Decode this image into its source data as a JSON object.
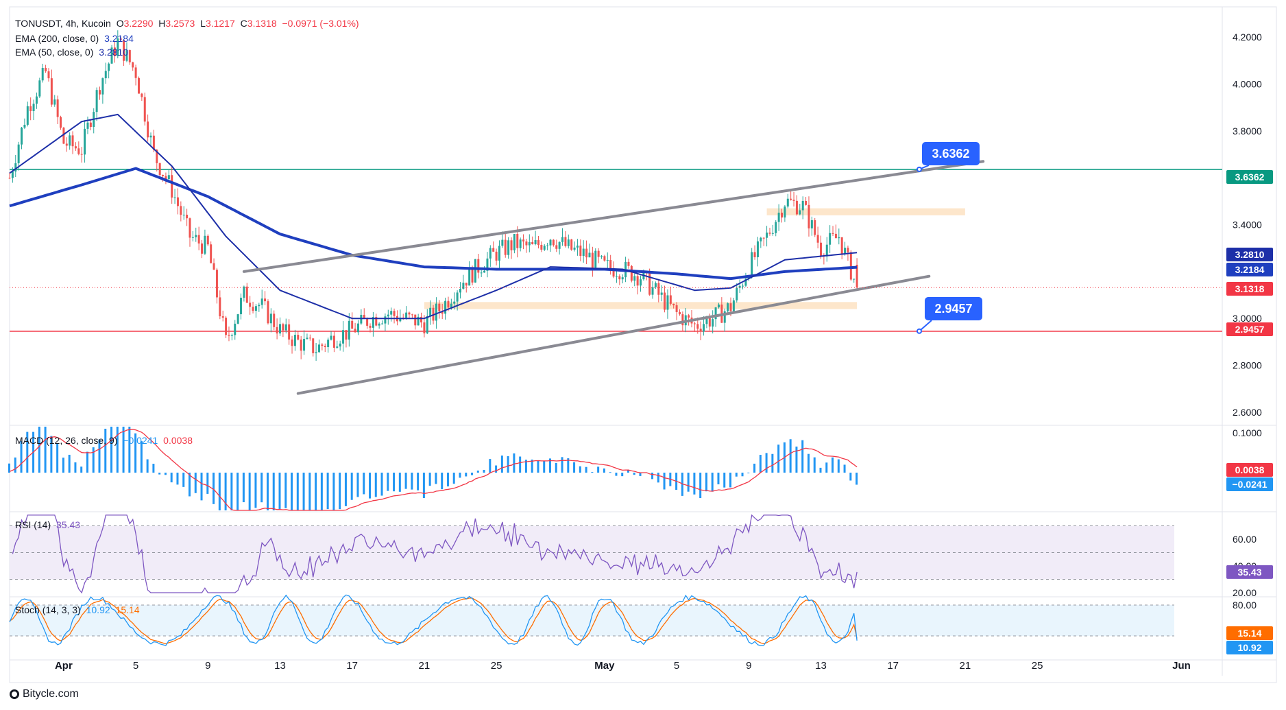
{
  "header": {
    "symbol": "TONUSDT, 4h, Kucoin",
    "open_label": "O",
    "open": "3.2290",
    "high_label": "H",
    "high": "3.2573",
    "low_label": "L",
    "low": "3.1217",
    "close_label": "C",
    "close": "3.1318",
    "change": "−0.0971 (−3.01%)"
  },
  "indicators": {
    "ema200": {
      "label": "EMA (200, close, 0)",
      "value": "3.2184",
      "color": "#1f3fbf"
    },
    "ema50": {
      "label": "EMA (50, close, 0)",
      "value": "3.2810",
      "color": "#1d2fa8"
    },
    "macd": {
      "label": "MACD (12, 26, close, 9)",
      "macd_value": "−0.0241",
      "signal_value": "0.0038"
    },
    "rsi": {
      "label": "RSI (14)",
      "value": "35.43"
    },
    "stoch": {
      "label": "Stoch (14, 3, 3)",
      "k_value": "10.92",
      "d_value": "15.14"
    }
  },
  "callouts": {
    "resistance": "3.6362",
    "support": "2.9457"
  },
  "price_axis": {
    "ticks": [
      "4.2000",
      "4.0000",
      "3.8000",
      "3.6000",
      "3.4000",
      "3.0000",
      "2.8000",
      "2.6000"
    ],
    "tags": {
      "resistance": "3.6362",
      "ema50": "3.2810",
      "ema200": "3.2184",
      "last": "3.1318",
      "support": "2.9457"
    }
  },
  "macd_axis": {
    "ticks": [
      "0.1000"
    ],
    "tags": {
      "signal": "0.0038",
      "macd": "−0.0241"
    }
  },
  "rsi_axis": {
    "ticks": [
      "60.00",
      "40.00",
      "20.00"
    ],
    "tag": "35.43"
  },
  "stoch_axis": {
    "ticks": [
      "80.00"
    ],
    "tags": {
      "d": "15.14",
      "k": "10.92"
    }
  },
  "time_axis": [
    "Apr",
    "5",
    "9",
    "13",
    "17",
    "21",
    "25",
    "May",
    "5",
    "9",
    "13",
    "17",
    "21",
    "25",
    "Jun"
  ],
  "colors": {
    "up": "#26a69a",
    "down": "#ef5350",
    "ema200": "#1f3fbf",
    "ema50": "#1d2fa8",
    "resistance": "#089981",
    "support": "#f23645",
    "channel": "#8a8a93",
    "zone": "#fde2c2",
    "callout": "#2962ff",
    "macd_signal": "#f23645",
    "histogram": "#2196f3",
    "rsi": "#7e57c2",
    "stoch_k": "#2196f3",
    "stoch_d": "#ff6d00"
  },
  "footer": {
    "brand": "Bitycle.com"
  },
  "chart_data": [
    {
      "type": "candlestick",
      "symbol": "TONUSDT",
      "timeframe": "4h",
      "ylim": [
        2.55,
        4.3
      ],
      "x_range": [
        "Mar 29",
        "Jun 2"
      ],
      "ohlc_last": {
        "open": 3.229,
        "high": 3.2573,
        "low": 3.1217,
        "close": 3.1318
      },
      "price_path": [
        {
          "x": "Mar 29",
          "y": 3.6
        },
        {
          "x": "Mar 30",
          "y": 3.9
        },
        {
          "x": "Mar 31",
          "y": 4.05
        },
        {
          "x": "Apr 1",
          "y": 3.75
        },
        {
          "x": "Apr 2",
          "y": 3.72
        },
        {
          "x": "Apr 3",
          "y": 4.0
        },
        {
          "x": "Apr 4",
          "y": 4.18
        },
        {
          "x": "Apr 5",
          "y": 4.05
        },
        {
          "x": "Apr 6",
          "y": 3.7
        },
        {
          "x": "Apr 7",
          "y": 3.55
        },
        {
          "x": "Apr 8",
          "y": 3.35
        },
        {
          "x": "Apr 9",
          "y": 3.3
        },
        {
          "x": "Apr 10",
          "y": 2.9
        },
        {
          "x": "Apr 11",
          "y": 3.1
        },
        {
          "x": "Apr 12",
          "y": 3.05
        },
        {
          "x": "Apr 13",
          "y": 2.95
        },
        {
          "x": "Apr 14",
          "y": 2.9
        },
        {
          "x": "Apr 15",
          "y": 2.87
        },
        {
          "x": "Apr 16",
          "y": 2.92
        },
        {
          "x": "Apr 17",
          "y": 2.95
        },
        {
          "x": "Apr 18",
          "y": 3.0
        },
        {
          "x": "Apr 19",
          "y": 3.02
        },
        {
          "x": "Apr 20",
          "y": 3.0
        },
        {
          "x": "Apr 21",
          "y": 2.98
        },
        {
          "x": "Apr 22",
          "y": 3.05
        },
        {
          "x": "Apr 23",
          "y": 3.15
        },
        {
          "x": "Apr 24",
          "y": 3.22
        },
        {
          "x": "Apr 25",
          "y": 3.28
        },
        {
          "x": "Apr 26",
          "y": 3.32
        },
        {
          "x": "Apr 27",
          "y": 3.3
        },
        {
          "x": "Apr 28",
          "y": 3.35
        },
        {
          "x": "Apr 29",
          "y": 3.3
        },
        {
          "x": "Apr 30",
          "y": 3.27
        },
        {
          "x": "May 1",
          "y": 3.22
        },
        {
          "x": "May 2",
          "y": 3.21
        },
        {
          "x": "May 3",
          "y": 3.18
        },
        {
          "x": "May 4",
          "y": 3.1
        },
        {
          "x": "May 5",
          "y": 3.02
        },
        {
          "x": "May 6",
          "y": 2.97
        },
        {
          "x": "May 7",
          "y": 3.0
        },
        {
          "x": "May 8",
          "y": 3.05
        },
        {
          "x": "May 9",
          "y": 3.22
        },
        {
          "x": "May 10",
          "y": 3.35
        },
        {
          "x": "May 11",
          "y": 3.5
        },
        {
          "x": "May 12",
          "y": 3.48
        },
        {
          "x": "May 13",
          "y": 3.3
        },
        {
          "x": "May 14",
          "y": 3.35
        },
        {
          "x": "May 15",
          "y": 3.1318
        }
      ],
      "ema200_path": [
        {
          "x": "Mar 29",
          "y": 3.48
        },
        {
          "x": "Apr 2",
          "y": 3.57
        },
        {
          "x": "Apr 5",
          "y": 3.64
        },
        {
          "x": "Apr 9",
          "y": 3.52
        },
        {
          "x": "Apr 13",
          "y": 3.36
        },
        {
          "x": "Apr 17",
          "y": 3.27
        },
        {
          "x": "Apr 21",
          "y": 3.22
        },
        {
          "x": "Apr 25",
          "y": 3.21
        },
        {
          "x": "May 1",
          "y": 3.21
        },
        {
          "x": "May 5",
          "y": 3.19
        },
        {
          "x": "May 8",
          "y": 3.17
        },
        {
          "x": "May 11",
          "y": 3.2
        },
        {
          "x": "May 15",
          "y": 3.2184
        }
      ],
      "ema50_path": [
        {
          "x": "Mar 29",
          "y": 3.62
        },
        {
          "x": "Apr 2",
          "y": 3.84
        },
        {
          "x": "Apr 4",
          "y": 3.87
        },
        {
          "x": "Apr 7",
          "y": 3.65
        },
        {
          "x": "Apr 10",
          "y": 3.35
        },
        {
          "x": "Apr 13",
          "y": 3.12
        },
        {
          "x": "Apr 17",
          "y": 3.0
        },
        {
          "x": "Apr 21",
          "y": 3.0
        },
        {
          "x": "Apr 25",
          "y": 3.12
        },
        {
          "x": "Apr 28",
          "y": 3.22
        },
        {
          "x": "May 2",
          "y": 3.21
        },
        {
          "x": "May 6",
          "y": 3.12
        },
        {
          "x": "May 8",
          "y": 3.13
        },
        {
          "x": "May 11",
          "y": 3.25
        },
        {
          "x": "May 15",
          "y": 3.281
        }
      ],
      "horizontal_levels": [
        {
          "value": 3.6362,
          "label": "3.6362",
          "color": "resistance"
        },
        {
          "value": 2.9457,
          "label": "2.9457",
          "color": "support"
        }
      ],
      "zones": [
        {
          "from": "May 10",
          "to": "May 21",
          "y_low": 3.44,
          "y_high": 3.47
        },
        {
          "from": "Apr 21",
          "to": "May 15",
          "y_low": 3.04,
          "y_high": 3.07
        }
      ],
      "channel_lines": [
        {
          "from": {
            "x": "Apr 11",
            "y": 3.2
          },
          "to": {
            "x": "May 22",
            "y": 3.67
          }
        },
        {
          "from": {
            "x": "Apr 14",
            "y": 2.68
          },
          "to": {
            "x": "May 19",
            "y": 3.18
          }
        }
      ]
    },
    {
      "type": "histogram",
      "name": "MACD (12, 26, close, 9)",
      "last_macd": -0.0241,
      "last_signal": 0.0038
    },
    {
      "type": "line",
      "name": "RSI (14)",
      "ylim": [
        20,
        80
      ],
      "last": 35.43
    },
    {
      "type": "line",
      "name": "Stoch (14, 3, 3)",
      "ylim": [
        0,
        100
      ],
      "last_k": 10.92,
      "last_d": 15.14
    }
  ]
}
